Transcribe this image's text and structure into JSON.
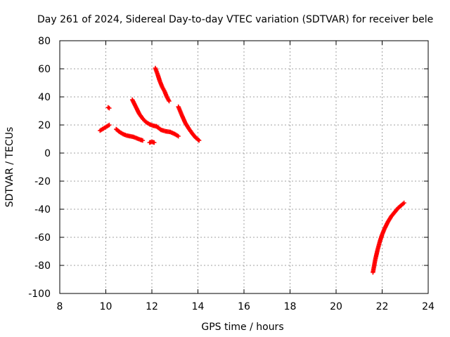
{
  "chart_data": {
    "type": "scatter",
    "title": "Day 261 of 2024, Sidereal Day-to-day VTEC variation (SDTVAR) for receiver bele",
    "xlabel": "GPS time / hours",
    "ylabel": "SDTVAR / TECUs",
    "xlim": [
      8,
      24
    ],
    "ylim": [
      -100,
      80
    ],
    "xticks": [
      8,
      10,
      12,
      14,
      16,
      18,
      20,
      22,
      24
    ],
    "yticks": [
      -100,
      -80,
      -60,
      -40,
      -20,
      0,
      20,
      40,
      60,
      80
    ],
    "grid": true,
    "marker": "plus",
    "color": "#ff0000",
    "series": [
      {
        "x": [
          9.75,
          9.85,
          9.95,
          10.05,
          10.15
        ],
        "y": [
          16,
          17,
          18,
          19,
          20
        ]
      },
      {
        "x": [
          10.1,
          10.15
        ],
        "y": [
          32.5,
          32
        ]
      },
      {
        "x": [
          10.45,
          10.6,
          10.75,
          10.9,
          11.05,
          11.2,
          11.35,
          11.5,
          11.6
        ],
        "y": [
          17,
          15,
          13.5,
          12.5,
          12,
          11.5,
          10.5,
          9.5,
          9
        ]
      },
      {
        "x": [
          11.9,
          12.0,
          12.1
        ],
        "y": [
          7.5,
          8,
          7.5
        ]
      },
      {
        "x": [
          11.15,
          11.3,
          11.45,
          11.6,
          11.75,
          11.9,
          12.05,
          12.2
        ],
        "y": [
          38,
          33,
          28,
          24.5,
          22,
          20.5,
          19.5,
          19
        ]
      },
      {
        "x": [
          12.15,
          12.25,
          12.35,
          12.45,
          12.55,
          12.65,
          12.75
        ],
        "y": [
          60.5,
          56,
          51,
          47,
          44,
          40,
          37
        ]
      },
      {
        "x": [
          12.2,
          12.4,
          12.6,
          12.8,
          13.0,
          13.15
        ],
        "y": [
          19,
          16.5,
          15.5,
          15,
          13.5,
          12
        ]
      },
      {
        "x": [
          13.15,
          13.3,
          13.45,
          13.6,
          13.75,
          13.9,
          14.05
        ],
        "y": [
          33,
          27,
          21.5,
          17.5,
          14,
          11,
          9
        ]
      },
      {
        "x": [
          21.6,
          21.7,
          21.8,
          21.9,
          22.0,
          22.1,
          22.25,
          22.4,
          22.55,
          22.7,
          22.85,
          22.95
        ],
        "y": [
          -85,
          -76,
          -69,
          -63,
          -58,
          -54,
          -49,
          -45,
          -42,
          -39,
          -37,
          -35.5
        ]
      }
    ]
  }
}
